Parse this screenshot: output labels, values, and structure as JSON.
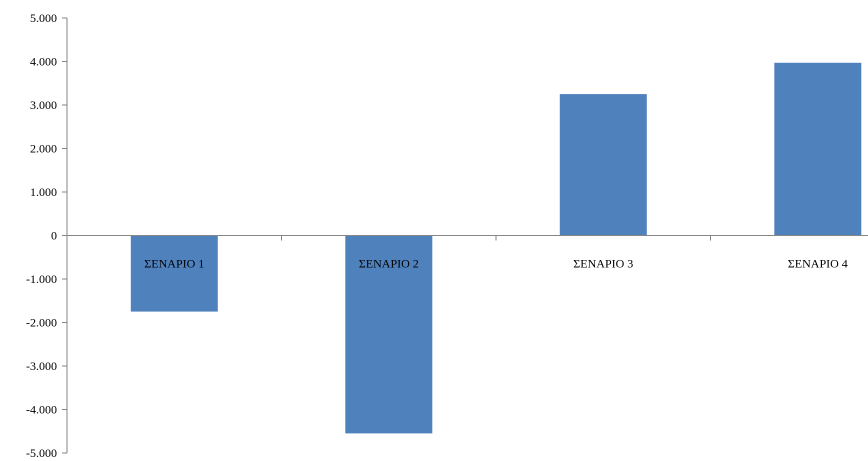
{
  "chart_data": {
    "type": "bar",
    "categories": [
      "ΣΕΝΑΡΙΟ 1",
      "ΣΕΝΑΡΙΟ 2",
      "ΣΕΝΑΡΙΟ 3",
      "ΣΕΝΑΡΙΟ 4"
    ],
    "values": [
      -1750,
      -4550,
      3250,
      3970
    ],
    "ylim": [
      -5000,
      5000
    ],
    "yticks": [
      5000,
      4000,
      3000,
      2000,
      1000,
      0,
      -1000,
      -2000,
      -3000,
      -4000,
      -5000
    ],
    "ytick_labels": [
      "5.000",
      "4.000",
      "3.000",
      "2.000",
      "1.000",
      "0",
      "-1.000",
      "-2.000",
      "-3.000",
      "-4.000",
      "-5.000"
    ],
    "bar_color": "#4f81bd",
    "axis_color": "#868686",
    "grid": false,
    "legend": "none"
  }
}
